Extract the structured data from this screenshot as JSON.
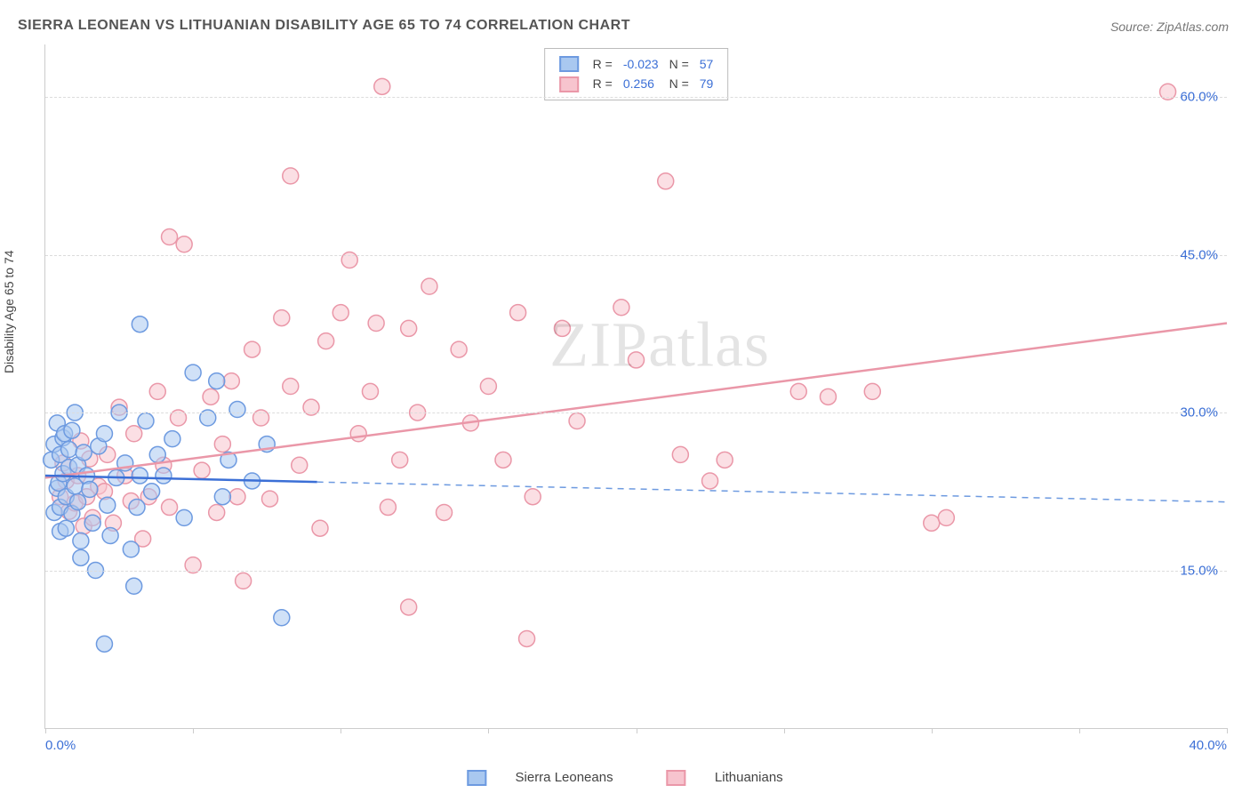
{
  "title": "SIERRA LEONEAN VS LITHUANIAN DISABILITY AGE 65 TO 74 CORRELATION CHART",
  "source": "Source: ZipAtlas.com",
  "ylabel": "Disability Age 65 to 74",
  "watermark": "ZIPatlas",
  "chart": {
    "type": "scatter",
    "xlim": [
      0,
      40
    ],
    "ylim": [
      0,
      65
    ],
    "xtick_positions": [
      0,
      5,
      10,
      15,
      20,
      25,
      30,
      35,
      40
    ],
    "xtick_labels": {
      "0": "0.0%",
      "40": "40.0%"
    },
    "ytick_positions": [
      15,
      30,
      45,
      60
    ],
    "ytick_labels": {
      "15": "15.0%",
      "30": "30.0%",
      "45": "45.0%",
      "60": "60.0%"
    },
    "grid_color": "#dcdcdc",
    "background_color": "#ffffff",
    "marker_radius": 9,
    "marker_stroke_width": 1.5,
    "line_width": 2.5,
    "series": [
      {
        "name": "Sierra Leoneans",
        "fill": "#a9c8f0",
        "stroke": "#6d9ae0",
        "fill_opacity": 0.55,
        "R": "-0.023",
        "N": "57",
        "trend": {
          "x1": 0,
          "y1": 24.0,
          "x2": 9.2,
          "y2": 23.4,
          "solid_until_x": 9.2,
          "dash_to_x": 40,
          "dash_y2": 21.5
        },
        "points": [
          [
            0.2,
            25.5
          ],
          [
            0.3,
            27.0
          ],
          [
            0.3,
            20.5
          ],
          [
            0.4,
            22.8
          ],
          [
            0.4,
            29.0
          ],
          [
            0.45,
            23.3
          ],
          [
            0.5,
            26.0
          ],
          [
            0.5,
            18.7
          ],
          [
            0.5,
            21.0
          ],
          [
            0.6,
            24.2
          ],
          [
            0.6,
            27.6
          ],
          [
            0.65,
            28.0
          ],
          [
            0.7,
            22.0
          ],
          [
            0.7,
            19.0
          ],
          [
            0.8,
            24.8
          ],
          [
            0.8,
            26.5
          ],
          [
            0.9,
            20.4
          ],
          [
            0.9,
            28.3
          ],
          [
            1.0,
            23.0
          ],
          [
            1.0,
            30.0
          ],
          [
            1.1,
            21.5
          ],
          [
            1.1,
            25.0
          ],
          [
            1.2,
            17.8
          ],
          [
            1.2,
            16.2
          ],
          [
            1.3,
            26.2
          ],
          [
            1.4,
            24.0
          ],
          [
            1.5,
            22.7
          ],
          [
            1.6,
            19.5
          ],
          [
            1.7,
            15.0
          ],
          [
            1.8,
            26.8
          ],
          [
            2.0,
            28.0
          ],
          [
            2.1,
            21.2
          ],
          [
            2.2,
            18.3
          ],
          [
            2.4,
            23.8
          ],
          [
            2.5,
            30.0
          ],
          [
            2.7,
            25.2
          ],
          [
            2.9,
            17.0
          ],
          [
            3.0,
            13.5
          ],
          [
            3.1,
            21.0
          ],
          [
            3.2,
            38.4
          ],
          [
            3.2,
            24.0
          ],
          [
            3.4,
            29.2
          ],
          [
            3.6,
            22.5
          ],
          [
            3.8,
            26.0
          ],
          [
            4.0,
            24.0
          ],
          [
            4.3,
            27.5
          ],
          [
            4.7,
            20.0
          ],
          [
            5.0,
            33.8
          ],
          [
            5.5,
            29.5
          ],
          [
            5.8,
            33.0
          ],
          [
            6.0,
            22.0
          ],
          [
            6.2,
            25.5
          ],
          [
            6.5,
            30.3
          ],
          [
            7.0,
            23.5
          ],
          [
            7.5,
            27.0
          ],
          [
            8.0,
            10.5
          ],
          [
            2.0,
            8.0
          ]
        ]
      },
      {
        "name": "Lithuanians",
        "fill": "#f7c4ce",
        "stroke": "#ea97a8",
        "fill_opacity": 0.55,
        "R": "0.256",
        "N": "79",
        "trend": {
          "x1": 0,
          "y1": 23.8,
          "x2": 40,
          "y2": 38.5
        },
        "points": [
          [
            0.5,
            22.0
          ],
          [
            0.6,
            25.2
          ],
          [
            0.7,
            23.5
          ],
          [
            0.8,
            20.6
          ],
          [
            1.0,
            21.4
          ],
          [
            1.1,
            24.0
          ],
          [
            1.2,
            27.3
          ],
          [
            1.3,
            19.2
          ],
          [
            1.4,
            22.0
          ],
          [
            1.5,
            25.6
          ],
          [
            1.6,
            20.0
          ],
          [
            1.8,
            23.0
          ],
          [
            2.0,
            22.5
          ],
          [
            2.1,
            26.0
          ],
          [
            2.3,
            19.5
          ],
          [
            2.5,
            30.5
          ],
          [
            2.7,
            24.0
          ],
          [
            2.9,
            21.6
          ],
          [
            3.0,
            28.0
          ],
          [
            3.3,
            18.0
          ],
          [
            3.5,
            22.0
          ],
          [
            3.8,
            32.0
          ],
          [
            4.0,
            25.0
          ],
          [
            4.2,
            21.0
          ],
          [
            4.5,
            29.5
          ],
          [
            4.2,
            46.7
          ],
          [
            4.7,
            46.0
          ],
          [
            5.0,
            15.5
          ],
          [
            5.3,
            24.5
          ],
          [
            5.6,
            31.5
          ],
          [
            5.8,
            20.5
          ],
          [
            6.0,
            27.0
          ],
          [
            6.3,
            33.0
          ],
          [
            6.5,
            22.0
          ],
          [
            6.7,
            14.0
          ],
          [
            7.0,
            36.0
          ],
          [
            7.3,
            29.5
          ],
          [
            7.6,
            21.8
          ],
          [
            8.0,
            39.0
          ],
          [
            8.3,
            32.5
          ],
          [
            8.3,
            52.5
          ],
          [
            8.6,
            25.0
          ],
          [
            9.0,
            30.5
          ],
          [
            9.3,
            19.0
          ],
          [
            9.5,
            36.8
          ],
          [
            10.0,
            39.5
          ],
          [
            10.3,
            44.5
          ],
          [
            10.6,
            28.0
          ],
          [
            11.0,
            32.0
          ],
          [
            11.2,
            38.5
          ],
          [
            11.4,
            61.0
          ],
          [
            11.6,
            21.0
          ],
          [
            12.0,
            25.5
          ],
          [
            12.3,
            11.5
          ],
          [
            12.3,
            38.0
          ],
          [
            12.6,
            30.0
          ],
          [
            13.0,
            42.0
          ],
          [
            13.5,
            20.5
          ],
          [
            14.0,
            36.0
          ],
          [
            14.4,
            29.0
          ],
          [
            15.0,
            32.5
          ],
          [
            15.5,
            25.5
          ],
          [
            16.0,
            39.5
          ],
          [
            16.3,
            8.5
          ],
          [
            16.5,
            22.0
          ],
          [
            17.5,
            38.0
          ],
          [
            18.0,
            29.2
          ],
          [
            19.5,
            40.0
          ],
          [
            20.0,
            35.0
          ],
          [
            21.0,
            52.0
          ],
          [
            21.5,
            26.0
          ],
          [
            22.5,
            23.5
          ],
          [
            23.0,
            25.5
          ],
          [
            25.5,
            32.0
          ],
          [
            26.5,
            31.5
          ],
          [
            30.0,
            19.5
          ],
          [
            30.5,
            20.0
          ],
          [
            28.0,
            32.0
          ],
          [
            38.0,
            60.5
          ]
        ]
      }
    ]
  },
  "legend_top": {
    "r_label": "R =",
    "n_label": "N ="
  },
  "legend_bottom": {
    "series1": "Sierra Leoneans",
    "series2": "Lithuanians"
  }
}
